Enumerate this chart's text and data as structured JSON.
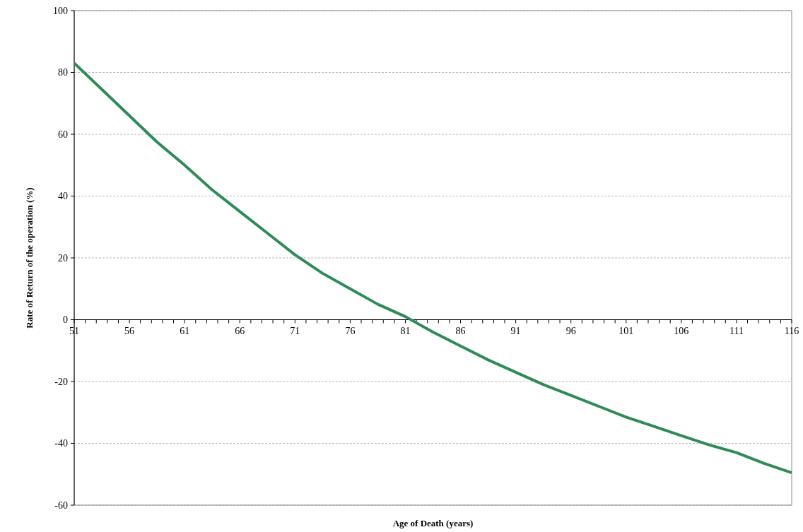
{
  "chart_data": {
    "type": "line",
    "xlabel": "Age of Death (years)",
    "ylabel": "Rate of Return of the operation (%)",
    "x": [
      51,
      53.5,
      56,
      58.5,
      61,
      63.5,
      66,
      68.5,
      71,
      73.5,
      76,
      78.5,
      81,
      83.5,
      86,
      88.5,
      91,
      93.5,
      96,
      98.5,
      101,
      103.5,
      106,
      108.5,
      111,
      113.5,
      116
    ],
    "series": [
      {
        "color": "#2e8b57",
        "values": [
          83,
          74.5,
          66,
          57.5,
          50,
          42,
          35,
          28,
          21,
          15,
          10,
          5,
          1,
          -4,
          -8.5,
          -13,
          -17,
          -21,
          -24.5,
          -28,
          -31.5,
          -34.5,
          -37.5,
          -40.5,
          -43,
          -46.5,
          -49.5
        ]
      }
    ],
    "xlim": [
      51,
      116
    ],
    "xticks": [
      51,
      56,
      61,
      66,
      71,
      76,
      81,
      86,
      91,
      96,
      101,
      106,
      111,
      116
    ],
    "ylim": [
      -60,
      100
    ],
    "yticks": [
      -60,
      -40,
      -20,
      0,
      20,
      40,
      60,
      80,
      100
    ],
    "grid": "y",
    "marker": "none",
    "line_style": "solid"
  }
}
